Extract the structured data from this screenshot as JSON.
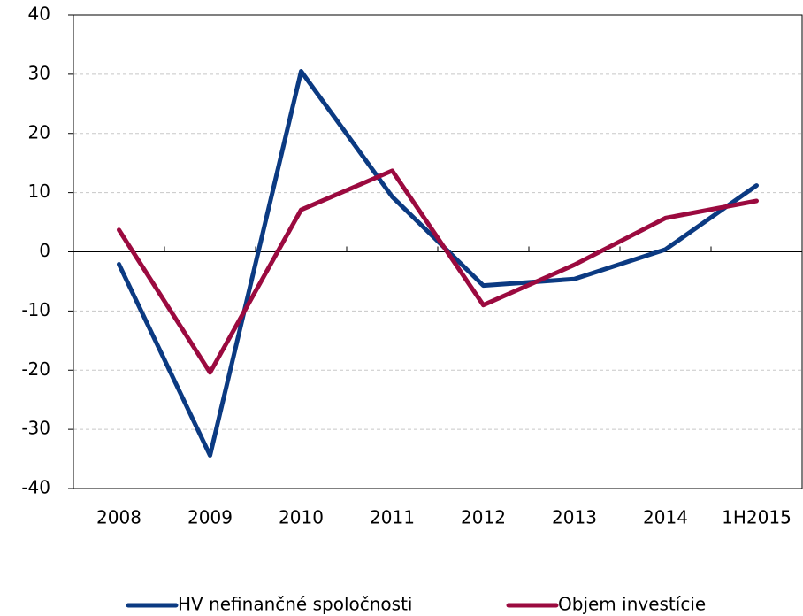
{
  "chart_data": {
    "type": "line",
    "categories": [
      "2008",
      "2009",
      "2010",
      "2011",
      "2012",
      "2013",
      "2014",
      "1H2015"
    ],
    "series": [
      {
        "name": "HV nefinančné spoločnosti",
        "color": "#0b3a82",
        "values": [
          -2.1,
          -34.4,
          30.5,
          9.3,
          -5.7,
          -4.6,
          0.4,
          11.2
        ]
      },
      {
        "name": "Objem investície",
        "color": "#9b0a3f",
        "values": [
          3.7,
          -20.4,
          7.1,
          13.7,
          -9.0,
          -2.2,
          5.7,
          8.6
        ]
      }
    ],
    "ylim": [
      -40,
      40
    ],
    "yticks": [
      -40,
      -30,
      -20,
      -10,
      0,
      10,
      20,
      30,
      40
    ],
    "grid": true
  }
}
